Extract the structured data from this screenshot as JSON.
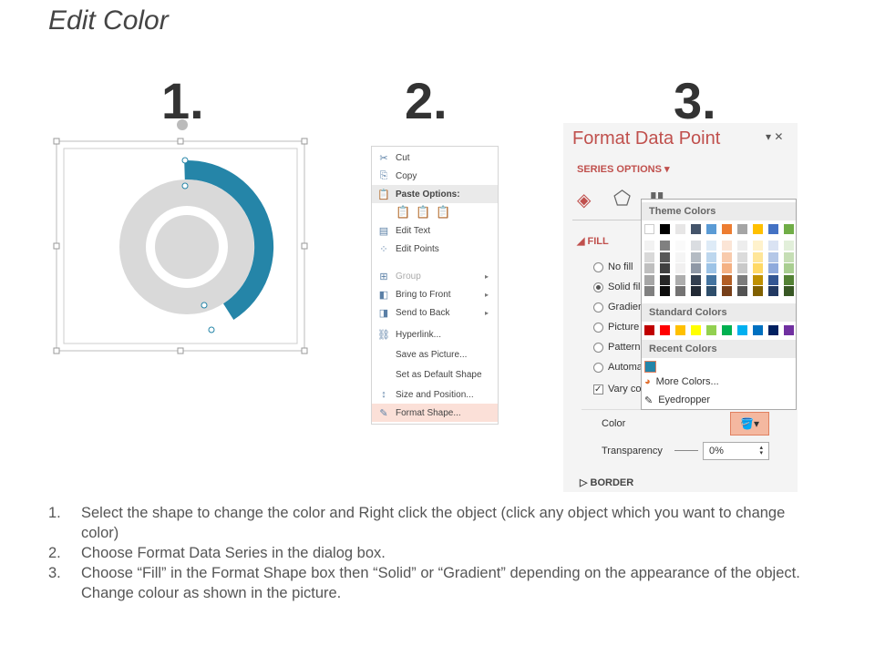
{
  "title": "Edit Color",
  "steps_numbers": [
    "1.",
    "2.",
    "3."
  ],
  "donut": {
    "accent_color": "#2585a8",
    "base_color": "#d9d9d9",
    "highlighted_fraction": 0.45
  },
  "context_menu": {
    "items": [
      {
        "label": "Cut",
        "icon": "scissors-icon"
      },
      {
        "label": "Copy",
        "icon": "copy-icon"
      },
      {
        "label": "Paste Options:",
        "icon": "paste-icon",
        "header": true
      },
      {
        "label": "Edit Text",
        "icon": "edit-text-icon"
      },
      {
        "label": "Edit Points",
        "icon": "edit-points-icon"
      },
      {
        "label": "Group",
        "icon": "group-icon",
        "disabled": true,
        "submenu": true
      },
      {
        "label": "Bring to Front",
        "icon": "bring-front-icon",
        "submenu": true
      },
      {
        "label": "Send to Back",
        "icon": "send-back-icon",
        "submenu": true
      },
      {
        "label": "Hyperlink...",
        "icon": "hyperlink-icon"
      },
      {
        "label": "Save as Picture...",
        "icon": ""
      },
      {
        "label": "Set as Default Shape",
        "icon": ""
      },
      {
        "label": "Size and Position...",
        "icon": "size-position-icon"
      },
      {
        "label": "Format Shape...",
        "icon": "format-shape-icon",
        "highlighted": true
      }
    ]
  },
  "format_panel": {
    "title": "Format Data Point",
    "series_options": "SERIES OPTIONS",
    "fill_section": "FILL",
    "fill_options": [
      "No fill",
      "Solid fill",
      "Gradient fill",
      "Picture or texture fill",
      "Pattern fill",
      "Automatic"
    ],
    "selected_fill": "Solid fill",
    "vary_colors": "Vary colors by point",
    "color_label": "Color",
    "transparency_label": "Transparency",
    "transparency_value": "0%",
    "border_section": "BORDER",
    "accent_color": "#c0504d"
  },
  "color_dropdown": {
    "theme_colors_label": "Theme Colors",
    "standard_colors_label": "Standard Colors",
    "recent_colors_label": "Recent Colors",
    "more_colors": "More Colors...",
    "eyedropper": "Eyedropper",
    "theme_colors": [
      "#ffffff",
      "#000000",
      "#e7e6e6",
      "#44546a",
      "#5b9bd5",
      "#ed7d31",
      "#a5a5a5",
      "#ffc000",
      "#4472c4",
      "#70ad47"
    ],
    "standard_colors": [
      "#c00000",
      "#ff0000",
      "#ffc000",
      "#ffff00",
      "#92d050",
      "#00b050",
      "#00b0f0",
      "#0070c0",
      "#002060",
      "#7030a0"
    ],
    "recent_colors": [
      "#2585a8"
    ]
  },
  "instructions": [
    {
      "num": "1.",
      "text": "Select the shape to change the color and Right click the object (click any object which you want to change color)"
    },
    {
      "num": "2.",
      "text": "Choose Format Data Series in the dialog box."
    },
    {
      "num": "3.",
      "text": "Choose “Fill” in the Format Shape box then “Solid” or “Gradient” depending on the appearance of the object. Change colour as shown in the picture."
    }
  ]
}
